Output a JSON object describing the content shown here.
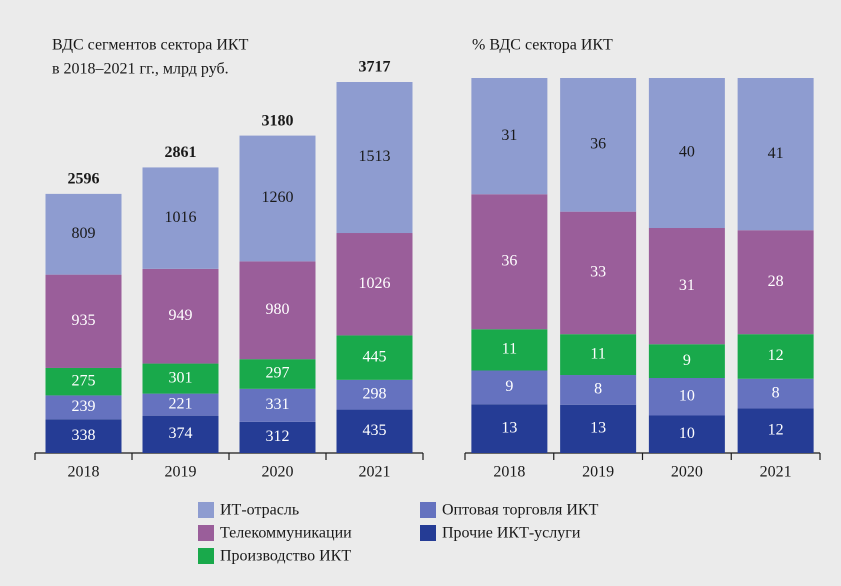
{
  "chart_data": [
    {
      "type": "stacked_bar",
      "title": "ВДС сегментов сектора ИКТ",
      "subtitle": "в 2018–2021 гг., млрд руб.",
      "categories": [
        "2018",
        "2019",
        "2020",
        "2021"
      ],
      "totals": [
        2596,
        2861,
        3180,
        3717
      ],
      "series": [
        {
          "name": "ИТ-отрасль",
          "color": "#8e9cd0",
          "label_color": "#1a1a1a",
          "values": [
            809,
            1016,
            1260,
            1513
          ]
        },
        {
          "name": "Телекоммуникации",
          "color": "#9a5e9a",
          "label_color": "#ffffff",
          "values": [
            935,
            949,
            980,
            1026
          ]
        },
        {
          "name": "Производство ИКТ",
          "color": "#19a94b",
          "label_color": "#ffffff",
          "values": [
            275,
            301,
            297,
            445
          ]
        },
        {
          "name": "Оптовая торговля ИКТ",
          "color": "#6572bf",
          "label_color": "#ffffff",
          "values": [
            239,
            221,
            331,
            298
          ]
        },
        {
          "name": "Прочие ИКТ-услуги",
          "color": "#253c95",
          "label_color": "#ffffff",
          "values": [
            338,
            374,
            312,
            435
          ]
        }
      ]
    },
    {
      "type": "stacked_bar",
      "title": "% ВДС сектора ИКТ",
      "categories": [
        "2018",
        "2019",
        "2020",
        "2021"
      ],
      "series": [
        {
          "color": "#8e9cd0",
          "label_color": "#1a1a1a",
          "values": [
            31,
            36,
            40,
            41
          ]
        },
        {
          "color": "#9a5e9a",
          "label_color": "#ffffff",
          "values": [
            36,
            33,
            31,
            28
          ]
        },
        {
          "color": "#19a94b",
          "label_color": "#ffffff",
          "values": [
            11,
            11,
            9,
            12
          ]
        },
        {
          "color": "#6572bf",
          "label_color": "#ffffff",
          "values": [
            9,
            8,
            10,
            8
          ]
        },
        {
          "color": "#253c95",
          "label_color": "#ffffff",
          "values": [
            13,
            13,
            10,
            12
          ]
        }
      ]
    }
  ]
}
